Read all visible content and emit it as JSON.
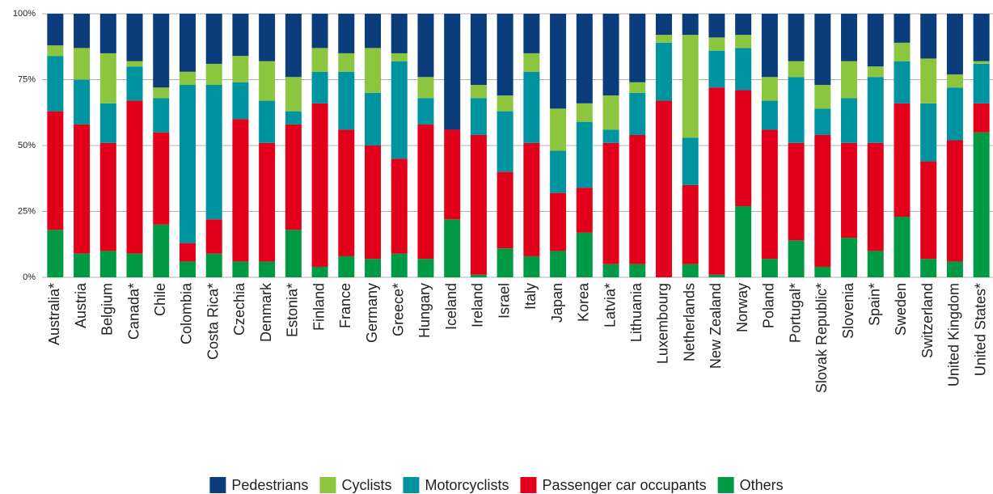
{
  "chart_data": {
    "type": "stacked-bar-100",
    "categories": [
      "Australia*",
      "Austria",
      "Belgium",
      "Canada*",
      "Chile",
      "Colombia",
      "Costa Rica*",
      "Czechia",
      "Denmark",
      "Estonia*",
      "Finland",
      "France",
      "Germany",
      "Greece*",
      "Hungary",
      "Iceland",
      "Ireland",
      "Israel",
      "Italy",
      "Japan",
      "Korea",
      "Latvia*",
      "Lithuania",
      "Luxembourg",
      "Netherlands",
      "New Zealand",
      "Norway",
      "Poland",
      "Portugal*",
      "Slovak Republic*",
      "Slovenia",
      "Spain*",
      "Sweden",
      "Switzerland",
      "United Kingdom",
      "United States*"
    ],
    "series": [
      {
        "name": "Pedestrians",
        "color": "#0b3d7c",
        "values": [
          12,
          13,
          15,
          18,
          28,
          22,
          19,
          16,
          18,
          24,
          13,
          15,
          13,
          15,
          24,
          44,
          27,
          31,
          15,
          36,
          34,
          31,
          26,
          8,
          8,
          9,
          8,
          24,
          18,
          27,
          18,
          20,
          11,
          17,
          23,
          18
        ]
      },
      {
        "name": "Cyclists",
        "color": "#8cc63f",
        "values": [
          4,
          12,
          19,
          2,
          4,
          5,
          8,
          10,
          15,
          13,
          9,
          7,
          17,
          3,
          8,
          0,
          5,
          6,
          7,
          16,
          7,
          13,
          4,
          3,
          39,
          5,
          5,
          9,
          6,
          9,
          14,
          4,
          7,
          17,
          5,
          1
        ]
      },
      {
        "name": "Motorcyclists",
        "color": "#0093a0",
        "values": [
          21,
          17,
          15,
          13,
          13,
          60,
          51,
          14,
          16,
          5,
          12,
          22,
          20,
          37,
          10,
          0,
          14,
          23,
          27,
          16,
          25,
          5,
          16,
          22,
          18,
          14,
          16,
          11,
          25,
          10,
          17,
          25,
          16,
          22,
          20,
          15
        ]
      },
      {
        "name": "Passenger car occupants",
        "color": "#e3001b",
        "values": [
          45,
          49,
          41,
          58,
          35,
          7,
          13,
          54,
          45,
          40,
          62,
          48,
          43,
          36,
          51,
          34,
          53,
          29,
          43,
          22,
          17,
          46,
          49,
          67,
          30,
          71,
          44,
          49,
          37,
          50,
          36,
          41,
          43,
          37,
          46,
          11
        ]
      },
      {
        "name": "Others",
        "color": "#009a44",
        "values": [
          18,
          9,
          10,
          9,
          20,
          6,
          9,
          6,
          6,
          18,
          4,
          8,
          7,
          9,
          7,
          22,
          1,
          11,
          8,
          10,
          17,
          5,
          5,
          0,
          5,
          1,
          27,
          7,
          14,
          4,
          15,
          10,
          23,
          7,
          6,
          55
        ]
      }
    ],
    "ylim": [
      0,
      100
    ],
    "yticks": [
      {
        "value": 0,
        "label": "0%"
      },
      {
        "value": 25,
        "label": "25%"
      },
      {
        "value": 50,
        "label": "50%"
      },
      {
        "value": 75,
        "label": "75%"
      },
      {
        "value": 100,
        "label": "100%"
      }
    ],
    "grid": true,
    "legend": "bottom"
  }
}
